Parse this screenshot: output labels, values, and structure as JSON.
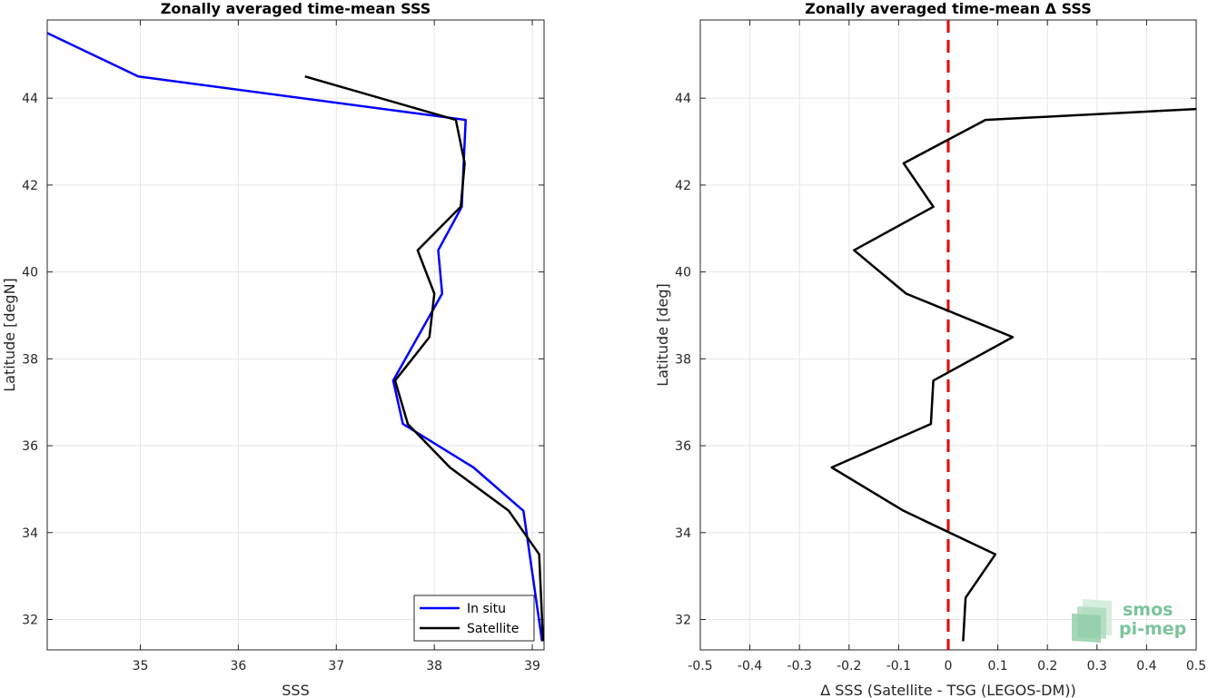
{
  "chart_data": [
    {
      "type": "line",
      "title": "Zonally averaged time-mean SSS",
      "xlabel": "SSS",
      "ylabel": "Latitude [degN]",
      "xlim": [
        34.05,
        39.12
      ],
      "ylim": [
        31.3,
        45.8
      ],
      "xticks": [
        35,
        36,
        37,
        38,
        39
      ],
      "yticks": [
        32,
        34,
        36,
        38,
        40,
        42,
        44
      ],
      "grid": true,
      "legend_position": "bottom-right",
      "series": [
        {
          "name": "In situ",
          "color": "#0000ff",
          "x": [
            34.05,
            34.98,
            38.32,
            38.3,
            38.28,
            38.04,
            38.08,
            37.58,
            37.68,
            38.4,
            38.91,
            39.1
          ],
          "y": [
            45.5,
            44.5,
            43.5,
            42.5,
            41.5,
            40.5,
            39.5,
            37.5,
            36.5,
            35.5,
            34.5,
            31.5
          ]
        },
        {
          "name": "Satellite",
          "color": "#000000",
          "x": [
            36.68,
            38.22,
            38.31,
            38.27,
            37.83,
            38.0,
            37.95,
            37.6,
            37.73,
            38.16,
            38.76,
            39.07,
            39.11
          ],
          "y": [
            44.5,
            43.5,
            42.5,
            41.5,
            40.5,
            39.5,
            38.5,
            37.5,
            36.5,
            35.5,
            34.5,
            33.5,
            31.5
          ]
        }
      ]
    },
    {
      "type": "line",
      "title": "Zonally averaged time-mean Δ SSS",
      "xlabel": "Δ SSS (Satellite - TSG (LEGOS-DM))",
      "ylabel": "Latitude [deg]",
      "xlim": [
        -0.5,
        0.5
      ],
      "ylim": [
        31.3,
        45.8
      ],
      "xticks": [
        -0.5,
        -0.4,
        -0.3,
        -0.2,
        -0.1,
        0,
        0.1,
        0.2,
        0.3,
        0.4,
        0.5
      ],
      "xtick_labels": [
        "-0.5",
        "-0.4",
        "-0.3",
        "-0.2",
        "-0.1",
        "0",
        "0.1",
        "0.2",
        "0.3",
        "0.4",
        "0.5"
      ],
      "yticks": [
        32,
        34,
        36,
        38,
        40,
        42,
        44
      ],
      "grid": true,
      "reference_line": {
        "x": 0,
        "color": "#e60000",
        "style": "dashed"
      },
      "series": [
        {
          "color": "#000000",
          "x": [
            0.5,
            0.075,
            -0.09,
            -0.03,
            -0.19,
            -0.085,
            0.13,
            -0.03,
            -0.035,
            -0.235,
            -0.09,
            0.095,
            0.035,
            0.03
          ],
          "y": [
            43.75,
            43.5,
            42.5,
            41.5,
            40.5,
            39.5,
            38.5,
            37.5,
            36.5,
            35.5,
            34.5,
            33.5,
            32.5,
            31.5
          ]
        }
      ]
    }
  ],
  "logo": {
    "line1": "smos",
    "line2": "pi-mep"
  }
}
